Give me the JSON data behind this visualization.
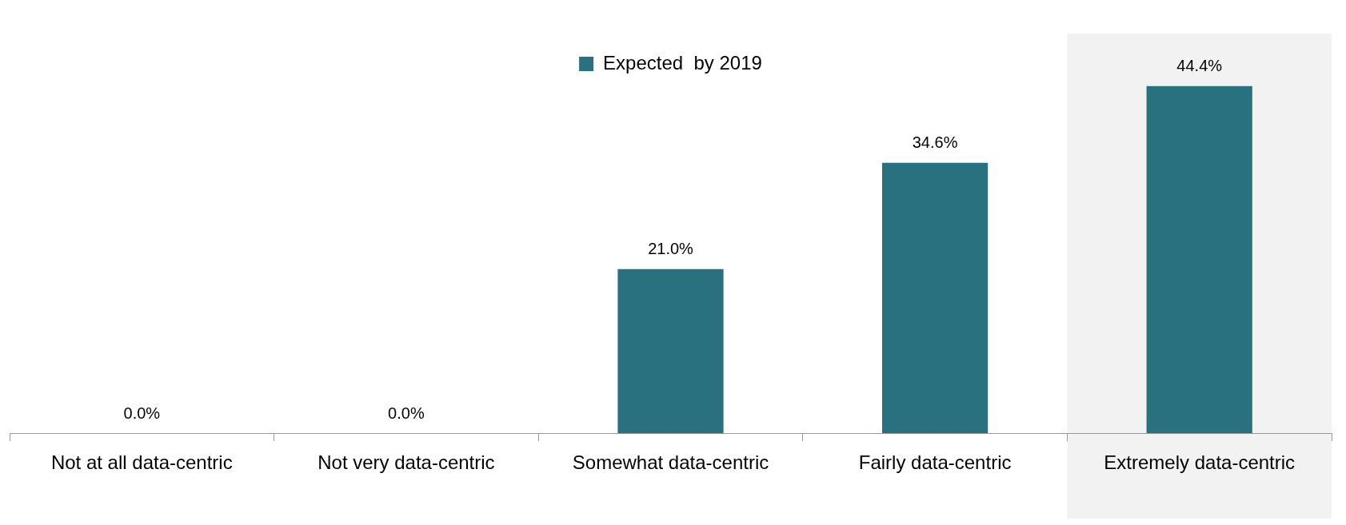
{
  "chart_data": {
    "type": "bar",
    "categories": [
      "Not at all data-centric",
      "Not very data-centric",
      "Somewhat data-centric",
      "Fairly data-centric",
      "Extremely data-centric"
    ],
    "series": [
      {
        "name": "Expected  by 2019",
        "color": "#2a717f",
        "values": [
          0.0,
          0.0,
          21.0,
          34.6,
          44.4
        ],
        "value_labels": [
          "0.0%",
          "0.0%",
          "21.0%",
          "34.6%",
          "44.4%"
        ]
      }
    ],
    "bands": [
      {
        "axis": "x",
        "from": "Extremely data-centric",
        "to": "Extremely data-centric",
        "color": "#f2f2f2"
      }
    ],
    "legend": "top",
    "grid": false,
    "tick_labels": "x"
  }
}
